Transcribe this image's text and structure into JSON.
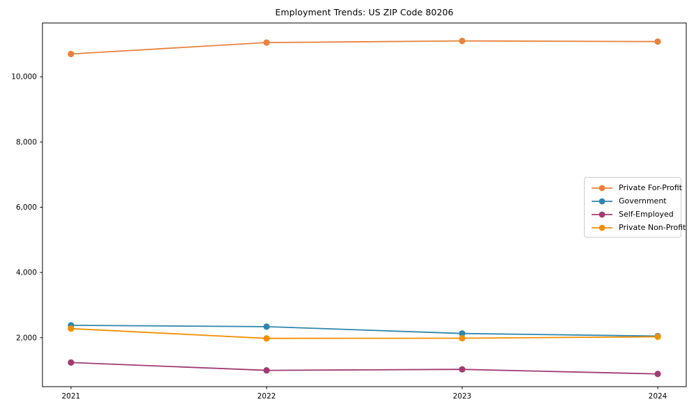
{
  "figure": {
    "background": "#ffffff",
    "axis_color": "#000000",
    "tick_label_color": "#000000"
  },
  "chart_data": {
    "type": "line",
    "title": "Employment Trends: US ZIP Code 80206",
    "x": [
      "2021",
      "2022",
      "2023",
      "2024"
    ],
    "series": [
      {
        "name": "Private For-Profit",
        "color": "#E8823D",
        "values": [
          10700,
          11050,
          11100,
          11080
        ]
      },
      {
        "name": "Government",
        "color": "#2E86AB",
        "values": [
          2380,
          2340,
          2130,
          2050
        ]
      },
      {
        "name": "Self-Employed",
        "color": "#A23B72",
        "values": [
          1240,
          1000,
          1030,
          890
        ]
      },
      {
        "name": "Private Non-Profit",
        "color": "#F18F01",
        "values": [
          2280,
          1980,
          1985,
          2030
        ]
      }
    ],
    "xlabel": "",
    "ylabel": "",
    "ylim": [
      500,
      11650
    ],
    "yticks": [
      2000,
      4000,
      6000,
      8000,
      10000
    ],
    "ytick_labels": [
      "2,000",
      "4,000",
      "6,000",
      "8,000",
      "10,000"
    ],
    "grid": false,
    "legend_position": "center-right-inside",
    "marker": "circle",
    "line_width": 1.8,
    "marker_radius": 4.6
  }
}
